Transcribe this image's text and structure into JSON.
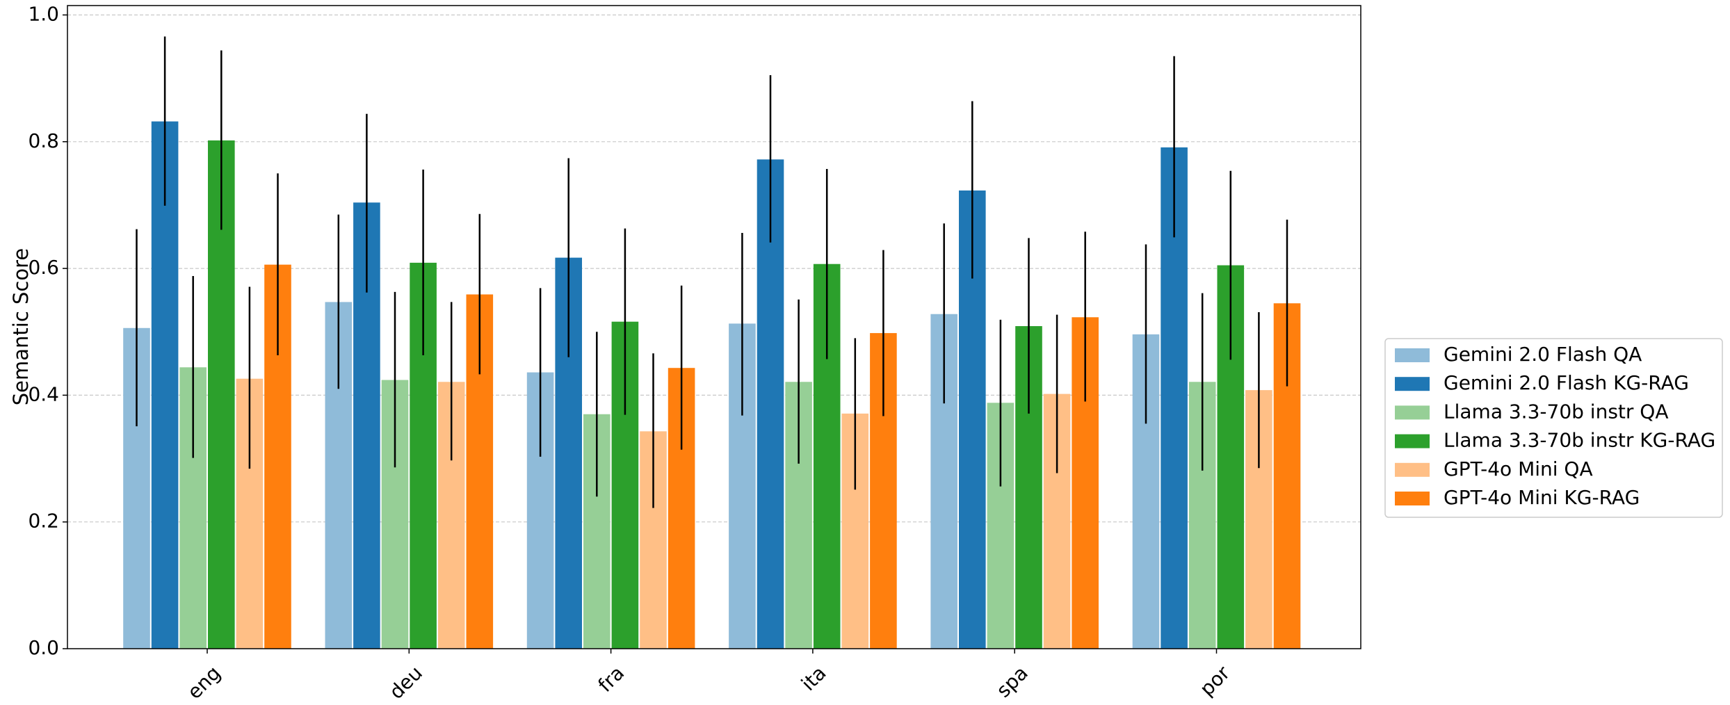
{
  "chart_data": {
    "type": "bar",
    "title": "",
    "xlabel": "",
    "ylabel": "Semantic Score",
    "ylim": [
      0,
      1.02
    ],
    "yticks": [
      "0.0",
      "0.2",
      "0.4",
      "0.6",
      "0.8",
      "1.0"
    ],
    "grid": "horizontal dashed",
    "legend_position": "right-outside",
    "categories": [
      "eng",
      "deu",
      "fra",
      "ita",
      "spa",
      "por"
    ],
    "series": [
      {
        "name": "Gemini 2.0 Flash QA",
        "color": "#8fbbd9",
        "values": [
          0.506,
          0.547,
          0.436,
          0.513,
          0.528,
          0.496
        ],
        "error_low": [
          0.351,
          0.41,
          0.303,
          0.368,
          0.387,
          0.355
        ],
        "error_high": [
          0.662,
          0.685,
          0.569,
          0.656,
          0.671,
          0.638
        ]
      },
      {
        "name": "Gemini 2.0 Flash KG-RAG",
        "color": "#1f77b4",
        "values": [
          0.832,
          0.704,
          0.617,
          0.772,
          0.723,
          0.791
        ],
        "error_low": [
          0.699,
          0.562,
          0.46,
          0.641,
          0.584,
          0.649
        ],
        "error_high": [
          0.966,
          0.844,
          0.774,
          0.905,
          0.864,
          0.935
        ]
      },
      {
        "name": "Llama 3.3-70b instr QA",
        "color": "#96cf96",
        "values": [
          0.444,
          0.424,
          0.37,
          0.421,
          0.388,
          0.421
        ],
        "error_low": [
          0.301,
          0.286,
          0.24,
          0.292,
          0.256,
          0.281
        ],
        "error_high": [
          0.588,
          0.563,
          0.5,
          0.551,
          0.519,
          0.561
        ]
      },
      {
        "name": "Llama 3.3-70b instr KG-RAG",
        "color": "#2ca02c",
        "values": [
          0.802,
          0.609,
          0.516,
          0.607,
          0.509,
          0.605
        ],
        "error_low": [
          0.661,
          0.463,
          0.369,
          0.457,
          0.371,
          0.456
        ],
        "error_high": [
          0.944,
          0.756,
          0.663,
          0.757,
          0.648,
          0.754
        ]
      },
      {
        "name": "GPT-4o Mini QA",
        "color": "#ffbf86",
        "values": [
          0.426,
          0.421,
          0.343,
          0.371,
          0.402,
          0.408
        ],
        "error_low": [
          0.284,
          0.297,
          0.222,
          0.251,
          0.277,
          0.285
        ],
        "error_high": [
          0.571,
          0.547,
          0.466,
          0.49,
          0.527,
          0.531
        ]
      },
      {
        "name": "GPT-4o Mini KG-RAG",
        "color": "#ff7f0e",
        "values": [
          0.606,
          0.559,
          0.443,
          0.498,
          0.523,
          0.545
        ],
        "error_low": [
          0.463,
          0.433,
          0.314,
          0.367,
          0.39,
          0.414
        ],
        "error_high": [
          0.75,
          0.686,
          0.573,
          0.629,
          0.658,
          0.677
        ]
      }
    ]
  }
}
